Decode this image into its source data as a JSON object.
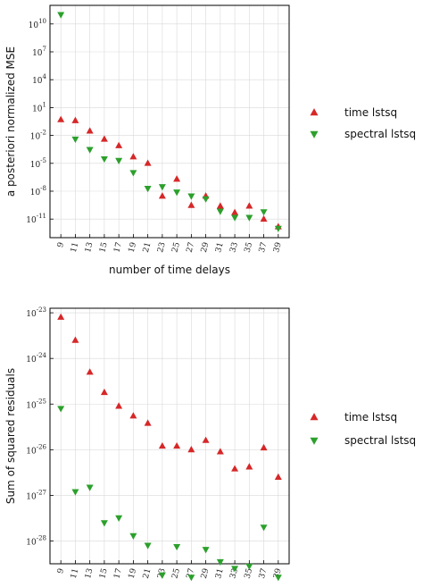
{
  "colors": {
    "time_lstsq": "#d62728",
    "spectral_lstsq": "#2ca02c",
    "axes": "#000000",
    "grid": "#d9d9d9"
  },
  "chart_data": [
    {
      "type": "scatter",
      "yscale": "log",
      "xlabel": "number of time delays",
      "ylabel": "a posteriori normalized MSE",
      "x": [
        9,
        11,
        13,
        15,
        17,
        19,
        21,
        23,
        25,
        27,
        29,
        31,
        33,
        35,
        37,
        39
      ],
      "xticks": [
        "9",
        "11",
        "13",
        "15",
        "17",
        "19",
        "21",
        "23",
        "25",
        "27",
        "29",
        "31",
        "33",
        "35",
        "37",
        "39"
      ],
      "ylim_exp": [
        -13,
        12
      ],
      "ytick_exps": [
        -11,
        -8,
        -5,
        -2,
        1,
        4,
        7,
        10
      ],
      "grid": true,
      "legend_position": "right",
      "series": [
        {
          "name": "time lstsq",
          "marker": "triangle-up",
          "values": [
            0.5,
            0.4,
            0.03,
            0.004,
            0.0008,
            5e-05,
            1e-05,
            3e-09,
            2e-07,
            3e-10,
            3e-09,
            2.5e-10,
            5e-11,
            2.5e-10,
            1e-11,
            1.5e-12
          ]
        },
        {
          "name": "spectral lstsq",
          "marker": "triangle-down",
          "values": [
            100000000000.0,
            0.004,
            0.0003,
            3e-05,
            2e-05,
            1e-06,
            2e-08,
            3e-08,
            8e-09,
            3e-09,
            1.5e-09,
            7e-11,
            1.5e-11,
            1.5e-11,
            6e-11,
            1e-12
          ]
        }
      ]
    },
    {
      "type": "scatter",
      "yscale": "log",
      "xlabel": "number of time delays",
      "ylabel": "Sum of squared residuals",
      "x": [
        9,
        11,
        13,
        15,
        17,
        19,
        21,
        23,
        25,
        27,
        29,
        31,
        33,
        35,
        37,
        39
      ],
      "xticks": [
        "9",
        "11",
        "13",
        "15",
        "17",
        "19",
        "21",
        "23",
        "25",
        "27",
        "29",
        "31",
        "33",
        "35",
        "37",
        "39"
      ],
      "ylim_exp": [
        -28.5,
        -22.9
      ],
      "ytick_exps": [
        -28,
        -27,
        -26,
        -25,
        -24,
        -23
      ],
      "grid": true,
      "legend_position": "right",
      "series": [
        {
          "name": "time lstsq",
          "marker": "triangle-up",
          "values": [
            8e-24,
            2.5e-24,
            5e-25,
            1.8e-25,
            9e-26,
            5.5e-26,
            3.8e-26,
            1.2e-26,
            1.2e-26,
            1e-26,
            1.6e-26,
            9e-27,
            3.8e-27,
            4.2e-27,
            1.1e-26,
            2.5e-27
          ]
        },
        {
          "name": "spectral lstsq",
          "marker": "triangle-down",
          "values": [
            8e-26,
            1.2e-27,
            1.5e-27,
            2.5e-28,
            3.2e-28,
            1.3e-28,
            8e-29,
            1.8e-29,
            7.5e-29,
            1.6e-29,
            6.5e-29,
            3.5e-29,
            2.5e-29,
            2.8e-29,
            2e-28,
            1.6e-29
          ]
        }
      ]
    }
  ]
}
